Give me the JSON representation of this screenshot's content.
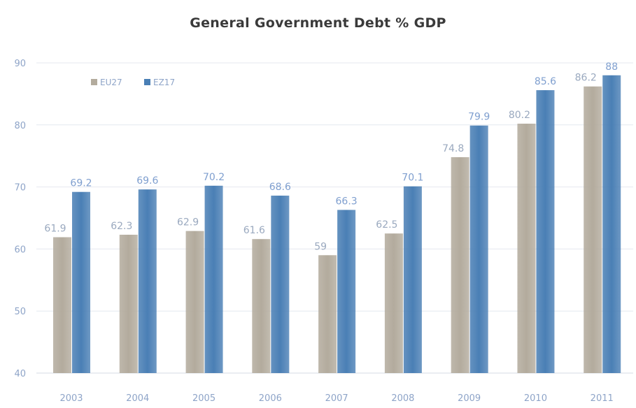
{
  "chart_data": {
    "type": "bar",
    "title": "General Government Debt % GDP",
    "xlabel": "",
    "ylabel": "",
    "ylim": [
      40,
      90
    ],
    "yticks": [
      40,
      50,
      60,
      70,
      80,
      90
    ],
    "grid": true,
    "legend_position": "top-left",
    "categories": [
      "2003",
      "2004",
      "2005",
      "2006",
      "2007",
      "2008",
      "2009",
      "2010",
      "2011"
    ],
    "series": [
      {
        "name": "EU27",
        "color": "#b3ab9d",
        "values": [
          61.9,
          62.3,
          62.9,
          61.6,
          59,
          62.5,
          74.8,
          80.2,
          86.2
        ],
        "labels": [
          "61.9",
          "62.3",
          "62.9",
          "61.6",
          "59",
          "62.5",
          "74.8",
          "80.2",
          "86.2"
        ]
      },
      {
        "name": "EZ17",
        "color": "#4a7fb5",
        "values": [
          69.2,
          69.6,
          70.2,
          68.6,
          66.3,
          70.1,
          79.9,
          85.6,
          88
        ],
        "labels": [
          "69.2",
          "69.6",
          "70.2",
          "68.6",
          "66.3",
          "70.1",
          "79.9",
          "85.6",
          "88"
        ]
      }
    ]
  }
}
